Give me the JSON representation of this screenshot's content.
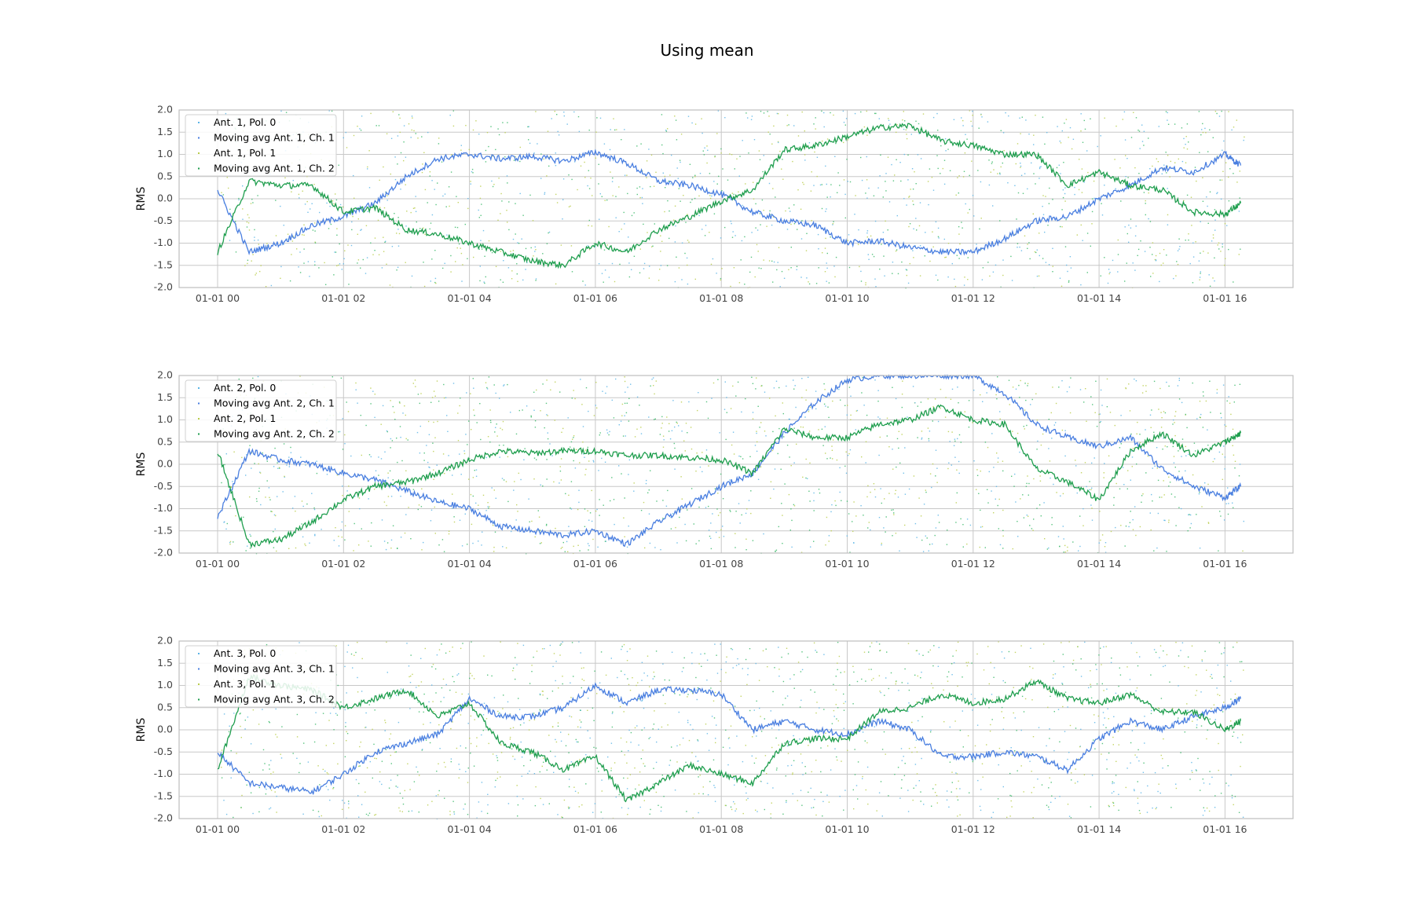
{
  "title": "Using mean",
  "colors": {
    "pol0_dots": "#5ab4e6",
    "pol1_dots": "#b8cc4a",
    "extra_dots": "#3cba6a",
    "moving_avg_ch1": "#4a7fe0",
    "moving_avg_ch2": "#1f9e4e",
    "grid": "#c8c8c8",
    "axes_edge": "#bdbdbd"
  },
  "chart_data": [
    {
      "type": "scatter",
      "ylabel": "RMS",
      "ylim": [
        -2.0,
        2.0
      ],
      "yticks": [
        "-2.0",
        "-1.5",
        "-1.0",
        "-0.5",
        "0.0",
        "0.5",
        "1.0",
        "1.5",
        "2.0"
      ],
      "xticks": [
        "01-01 00",
        "01-01 02",
        "01-01 04",
        "01-01 06",
        "01-01 08",
        "01-01 10",
        "01-01 12",
        "01-01 14",
        "01-01 16"
      ],
      "grid": true,
      "legend_position": "top-left",
      "legend": [
        "Ant. 1, Pol. 0",
        "Moving avg Ant. 1, Ch. 1",
        "Ant. 1, Pol. 1",
        "Moving avg Ant. 1, Ch. 2"
      ],
      "series": [
        {
          "name": "Moving avg Ant. 1, Ch. 1",
          "x": [
            "00:00",
            "00:30",
            "01:00",
            "01:30",
            "02:00",
            "02:30",
            "03:00",
            "03:30",
            "04:00",
            "04:30",
            "05:00",
            "05:30",
            "06:00",
            "06:30",
            "07:00",
            "07:30",
            "08:00",
            "08:30",
            "09:00",
            "09:30",
            "10:00",
            "10:30",
            "11:00",
            "11:30",
            "12:00",
            "12:30",
            "13:00",
            "13:30",
            "14:00",
            "14:30",
            "15:00",
            "15:30",
            "16:00",
            "16:15"
          ],
          "values": [
            0.2,
            -1.2,
            -1.0,
            -0.6,
            -0.4,
            -0.1,
            0.5,
            0.9,
            1.0,
            0.9,
            0.95,
            0.85,
            1.05,
            0.8,
            0.4,
            0.3,
            0.1,
            -0.3,
            -0.5,
            -0.6,
            -1.0,
            -0.95,
            -1.1,
            -1.2,
            -1.2,
            -0.9,
            -0.5,
            -0.4,
            0.0,
            0.3,
            0.7,
            0.6,
            1.0,
            0.75
          ]
        },
        {
          "name": "Moving avg Ant. 1, Ch. 2",
          "x": [
            "00:00",
            "00:30",
            "01:00",
            "01:30",
            "02:00",
            "02:30",
            "03:00",
            "03:30",
            "04:00",
            "04:30",
            "05:00",
            "05:30",
            "06:00",
            "06:30",
            "07:00",
            "07:30",
            "08:00",
            "08:30",
            "09:00",
            "09:30",
            "10:00",
            "10:30",
            "11:00",
            "11:30",
            "12:00",
            "12:30",
            "13:00",
            "13:30",
            "14:00",
            "14:30",
            "15:00",
            "15:30",
            "16:00",
            "16:15"
          ],
          "values": [
            -1.2,
            0.4,
            0.3,
            0.3,
            -0.3,
            -0.2,
            -0.7,
            -0.8,
            -1.0,
            -1.2,
            -1.4,
            -1.5,
            -1.0,
            -1.2,
            -0.7,
            -0.4,
            -0.05,
            0.2,
            1.1,
            1.2,
            1.4,
            1.6,
            1.65,
            1.3,
            1.2,
            1.0,
            1.0,
            0.3,
            0.6,
            0.3,
            0.2,
            -0.3,
            -0.35,
            -0.1
          ]
        }
      ]
    },
    {
      "type": "scatter",
      "ylabel": "RMS",
      "ylim": [
        -2.0,
        2.0
      ],
      "yticks": [
        "-2.0",
        "-1.5",
        "-1.0",
        "-0.5",
        "0.0",
        "0.5",
        "1.0",
        "1.5",
        "2.0"
      ],
      "xticks": [
        "01-01 00",
        "01-01 02",
        "01-01 04",
        "01-01 06",
        "01-01 08",
        "01-01 10",
        "01-01 12",
        "01-01 14",
        "01-01 16"
      ],
      "grid": true,
      "legend_position": "top-left",
      "legend": [
        "Ant. 2, Pol. 0",
        "Moving avg Ant. 2, Ch. 1",
        "Ant. 2, Pol. 1",
        "Moving avg Ant. 2, Ch. 2"
      ],
      "series": [
        {
          "name": "Moving avg Ant. 2, Ch. 1",
          "x": [
            "00:00",
            "00:30",
            "01:00",
            "01:30",
            "02:00",
            "02:30",
            "03:00",
            "03:30",
            "04:00",
            "04:30",
            "05:00",
            "05:30",
            "06:00",
            "06:30",
            "07:00",
            "07:30",
            "08:00",
            "08:30",
            "09:00",
            "09:30",
            "10:00",
            "10:30",
            "11:00",
            "11:30",
            "12:00",
            "12:30",
            "13:00",
            "13:30",
            "14:00",
            "14:30",
            "15:00",
            "15:30",
            "16:00",
            "16:15"
          ],
          "values": [
            -1.2,
            0.3,
            0.1,
            0.0,
            -0.2,
            -0.35,
            -0.6,
            -0.85,
            -1.0,
            -1.4,
            -1.5,
            -1.6,
            -1.5,
            -1.8,
            -1.3,
            -0.9,
            -0.5,
            -0.2,
            0.7,
            1.4,
            1.9,
            2.0,
            2.0,
            2.0,
            2.0,
            1.6,
            0.9,
            0.6,
            0.4,
            0.6,
            -0.1,
            -0.5,
            -0.75,
            -0.5
          ]
        },
        {
          "name": "Moving avg Ant. 2, Ch. 2",
          "x": [
            "00:00",
            "00:30",
            "01:00",
            "01:30",
            "02:00",
            "02:30",
            "03:00",
            "03:30",
            "04:00",
            "04:30",
            "05:00",
            "05:30",
            "06:00",
            "06:30",
            "07:00",
            "07:30",
            "08:00",
            "08:30",
            "09:00",
            "09:30",
            "10:00",
            "10:30",
            "11:00",
            "11:30",
            "12:00",
            "12:30",
            "13:00",
            "13:30",
            "14:00",
            "14:30",
            "15:00",
            "15:30",
            "16:00",
            "16:15"
          ],
          "values": [
            0.3,
            -1.8,
            -1.7,
            -1.3,
            -0.8,
            -0.5,
            -0.4,
            -0.2,
            0.1,
            0.3,
            0.25,
            0.3,
            0.3,
            0.2,
            0.2,
            0.15,
            0.1,
            -0.2,
            0.8,
            0.6,
            0.6,
            0.9,
            1.0,
            1.3,
            1.0,
            0.9,
            -0.1,
            -0.4,
            -0.8,
            0.3,
            0.7,
            0.2,
            0.5,
            0.7
          ]
        }
      ]
    },
    {
      "type": "scatter",
      "ylabel": "RMS",
      "ylim": [
        -2.0,
        2.0
      ],
      "yticks": [
        "-2.0",
        "-1.5",
        "-1.0",
        "-0.5",
        "0.0",
        "0.5",
        "1.0",
        "1.5",
        "2.0"
      ],
      "xticks": [
        "01-01 00",
        "01-01 02",
        "01-01 04",
        "01-01 06",
        "01-01 08",
        "01-01 10",
        "01-01 12",
        "01-01 14",
        "01-01 16"
      ],
      "grid": true,
      "legend_position": "top-left",
      "legend": [
        "Ant. 3, Pol. 0",
        "Moving avg Ant. 3, Ch. 1",
        "Ant. 3, Pol. 1",
        "Moving avg Ant. 3, Ch. 2"
      ],
      "series": [
        {
          "name": "Moving avg Ant. 3, Ch. 1",
          "x": [
            "00:00",
            "00:30",
            "01:00",
            "01:30",
            "02:00",
            "02:30",
            "03:00",
            "03:30",
            "04:00",
            "04:30",
            "05:00",
            "05:30",
            "06:00",
            "06:30",
            "07:00",
            "07:30",
            "08:00",
            "08:30",
            "09:00",
            "09:30",
            "10:00",
            "10:30",
            "11:00",
            "11:30",
            "12:00",
            "12:30",
            "13:00",
            "13:30",
            "14:00",
            "14:30",
            "15:00",
            "15:30",
            "16:00",
            "16:15"
          ],
          "values": [
            -0.5,
            -1.2,
            -1.3,
            -1.4,
            -1.0,
            -0.5,
            -0.3,
            -0.1,
            0.7,
            0.3,
            0.3,
            0.5,
            1.0,
            0.6,
            0.9,
            0.9,
            0.8,
            0.0,
            0.2,
            0.0,
            -0.1,
            0.2,
            0.0,
            -0.6,
            -0.6,
            -0.5,
            -0.6,
            -0.9,
            -0.2,
            0.2,
            0.0,
            0.3,
            0.5,
            0.7
          ]
        },
        {
          "name": "Moving avg Ant. 3, Ch. 2",
          "x": [
            "00:00",
            "00:30",
            "01:00",
            "01:30",
            "02:00",
            "02:30",
            "03:00",
            "03:30",
            "04:00",
            "04:30",
            "05:00",
            "05:30",
            "06:00",
            "06:30",
            "07:00",
            "07:30",
            "08:00",
            "08:30",
            "09:00",
            "09:30",
            "10:00",
            "10:30",
            "11:00",
            "11:30",
            "12:00",
            "12:30",
            "13:00",
            "13:30",
            "14:00",
            "14:30",
            "15:00",
            "15:30",
            "16:00",
            "16:15"
          ],
          "values": [
            -0.9,
            1.2,
            1.0,
            0.9,
            0.5,
            0.7,
            0.9,
            0.3,
            0.6,
            -0.3,
            -0.5,
            -0.9,
            -0.6,
            -1.6,
            -1.2,
            -0.8,
            -1.0,
            -1.2,
            -0.3,
            -0.2,
            -0.2,
            0.4,
            0.5,
            0.8,
            0.6,
            0.7,
            1.1,
            0.7,
            0.6,
            0.8,
            0.4,
            0.4,
            0.0,
            0.2
          ]
        }
      ]
    }
  ]
}
